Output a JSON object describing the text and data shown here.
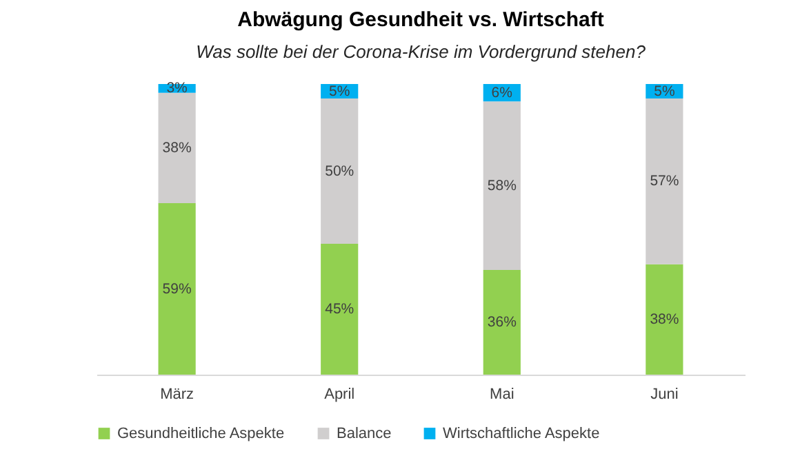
{
  "chart_data": {
    "type": "bar",
    "title": "Abwägung Gesundheit vs. Wirtschaft",
    "subtitle": "Was sollte bei der Corona-Krise im Vordergrund stehen?",
    "categories": [
      "März",
      "April",
      "Mai",
      "Juni"
    ],
    "stacked": true,
    "ylim": [
      0,
      100
    ],
    "tick_labels": "x",
    "legend": "bottom",
    "series": [
      {
        "name": "Gesundheitliche Aspekte",
        "color": "#92d050",
        "values": [
          59,
          45,
          36,
          38
        ],
        "value_labels": [
          "59%",
          "45%",
          "36%",
          "38%"
        ]
      },
      {
        "name": "Balance",
        "color": "#d0cece",
        "values": [
          38,
          50,
          58,
          57
        ],
        "value_labels": [
          "38%",
          "50%",
          "58%",
          "57%"
        ]
      },
      {
        "name": "Wirtschaftliche Aspekte",
        "color": "#00b0f0",
        "values": [
          3,
          5,
          6,
          5
        ],
        "value_labels": [
          "3%",
          "5%",
          "6%",
          "5%"
        ]
      }
    ]
  }
}
